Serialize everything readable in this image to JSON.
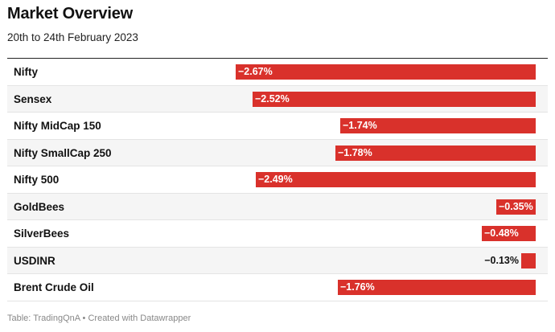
{
  "title": "Market Overview",
  "subtitle": "20th to 24th February 2023",
  "footer": "Table: TradingQnA • Created with Datawrapper",
  "colors": {
    "bar": "#d9312b",
    "label_inside": "#ffffff",
    "label_outside": "#111111"
  },
  "chart_data": {
    "type": "bar",
    "orientation": "horizontal",
    "title": "Market Overview",
    "subtitle": "20th to 24th February 2023",
    "categories": [
      "Nifty",
      "Sensex",
      "Nifty MidCap 150",
      "Nifty SmallCap 250",
      "Nifty 500",
      "GoldBees",
      "SilverBees",
      "USDINR",
      "Brent Crude Oil"
    ],
    "values": [
      -2.67,
      -2.52,
      -1.74,
      -1.78,
      -2.49,
      -0.35,
      -0.48,
      -0.13,
      -1.76
    ],
    "value_labels": [
      "−2.67%",
      "−2.52%",
      "−1.74%",
      "−1.78%",
      "−2.49%",
      "−0.35%",
      "−0.48%",
      "−0.13%",
      "−1.76%"
    ],
    "unit": "%",
    "xlim": [
      -2.67,
      0
    ],
    "grid": false,
    "legend": "none"
  }
}
